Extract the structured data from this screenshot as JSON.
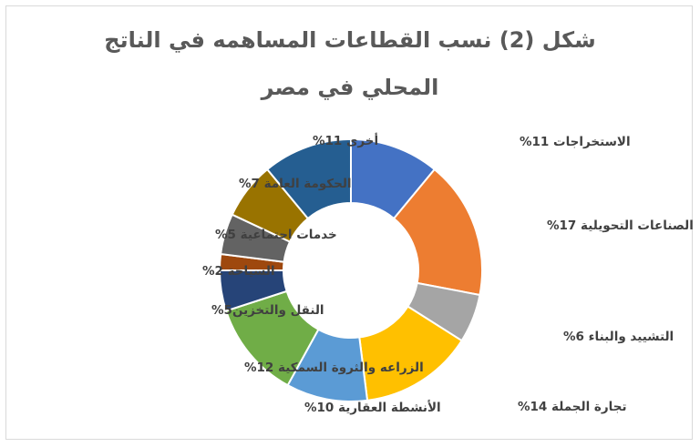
{
  "chart_data": {
    "type": "pie",
    "variant": "donut",
    "title_line1": "شكل (2) نسب القطاعات المساهمه في  الناتج",
    "title_line2": "المحلي في مصر",
    "legend": "none",
    "slices": [
      {
        "label": "الاستخراجات 11%",
        "value": 11,
        "color": "#4472c4"
      },
      {
        "label": "الصناعات التحويلية 17%",
        "value": 17,
        "color": "#ed7d31"
      },
      {
        "label": "التشييد والبناء 6%",
        "value": 6,
        "color": "#a5a5a5"
      },
      {
        "label": "تجارة الجملة 14%",
        "value": 14,
        "color": "#ffc000"
      },
      {
        "label": "الأنشطة العقارية 10%",
        "value": 10,
        "color": "#5b9bd5"
      },
      {
        "label": "الزراعه والثروة السمكية 12%",
        "value": 12,
        "color": "#70ad47"
      },
      {
        "label": "النقل والتخزين5%",
        "value": 5,
        "color": "#264478"
      },
      {
        "label": "السياحة 2%",
        "value": 2,
        "color": "#9e480e"
      },
      {
        "label": "خدمات اجتماعية 5%",
        "value": 5,
        "color": "#636363"
      },
      {
        "label": "الحكومة العامة 7%",
        "value": 7,
        "color": "#997300"
      },
      {
        "label": "أخرى 11%",
        "value": 11,
        "color": "#255e91"
      }
    ]
  }
}
